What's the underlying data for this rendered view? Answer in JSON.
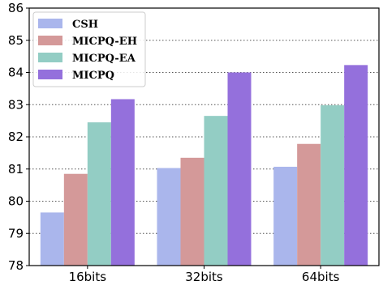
{
  "chart_data": {
    "type": "bar",
    "title": "",
    "xlabel": "",
    "ylabel": "",
    "categories": [
      "16bits",
      "32bits",
      "64bits"
    ],
    "ylim": [
      78,
      86
    ],
    "yticks": [
      78,
      79,
      80,
      81,
      82,
      83,
      84,
      85,
      86
    ],
    "grid": "horizontal dotted",
    "legend_position": "top-left",
    "series": [
      {
        "name": "CSH",
        "color": "#aab6ec",
        "values": [
          79.65,
          81.03,
          81.07
        ]
      },
      {
        "name": "MICPQ-EH",
        "color": "#d49999",
        "values": [
          80.85,
          81.35,
          81.78
        ]
      },
      {
        "name": "MICPQ-EA",
        "color": "#93cdc4",
        "values": [
          82.45,
          82.65,
          82.98
        ]
      },
      {
        "name": "MICPQ",
        "color": "#9470dc",
        "values": [
          83.17,
          84.0,
          84.23
        ]
      }
    ]
  }
}
